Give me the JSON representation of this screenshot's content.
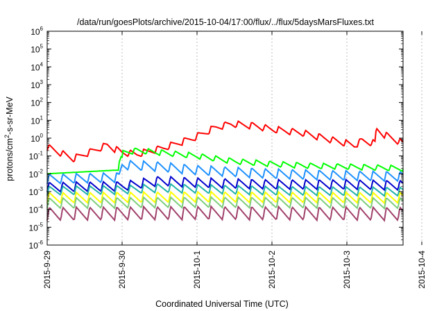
{
  "chart_data": {
    "type": "line",
    "title": "/data/run/goesPlots/archive/2015-10-04/17:00/flux/../flux/5daysMarsFluxes.txt",
    "xlabel": "Coordinated Universal Time (UTC)",
    "ylabel": "protons/cm²-s-sr-MeV",
    "ylabel_parts": {
      "pre": "protons/cm",
      "sup": "2",
      "post": "-s-sr-MeV"
    },
    "y_scale": "log",
    "ylim_exp": [
      -6,
      6
    ],
    "y_tick_base": "10",
    "y_tick_exponents": [
      "-6",
      "-5",
      "-4",
      "-3",
      "-2",
      "-1",
      "0",
      "1",
      "2",
      "3",
      "4",
      "5",
      "6"
    ],
    "x_range_days": [
      "2015-9-29",
      "2015-10-4 ~18:00"
    ],
    "x_ticks": [
      "2015-9-29",
      "2015-9-30",
      "2015-10-1",
      "2015-10-2",
      "2015-10-3",
      "2015-10-4"
    ],
    "grid": true,
    "legend": "none",
    "sampling_hours": 2,
    "series": [
      {
        "color": "#ff0000",
        "anchors": [
          [
            0,
            -0.5
          ],
          [
            0.35,
            -1.15
          ],
          [
            0.5,
            -0.9
          ],
          [
            0.8,
            -0.4
          ],
          [
            1.0,
            -0.8
          ],
          [
            1.2,
            -0.9
          ],
          [
            1.55,
            -0.55
          ],
          [
            1.95,
            0.0
          ],
          [
            2.25,
            0.6
          ],
          [
            2.45,
            0.8
          ],
          [
            2.75,
            0.7
          ],
          [
            3.0,
            0.5
          ],
          [
            3.4,
            0.3
          ],
          [
            3.8,
            -0.1
          ],
          [
            4.1,
            -0.4
          ],
          [
            4.2,
            -0.15
          ],
          [
            4.38,
            -0.3
          ],
          [
            4.39,
            0.5
          ],
          [
            4.5,
            0.2
          ],
          [
            4.75,
            -0.3
          ]
        ],
        "saw_amp": 0.38
      },
      {
        "color": "#00ff00",
        "anchors": [
          [
            0,
            -2.0
          ],
          [
            0.9,
            -1.8
          ],
          [
            0.95,
            -1.8
          ],
          [
            0.96,
            -1.2
          ],
          [
            1.0,
            -1.2
          ],
          [
            1.01,
            -0.8
          ],
          [
            1.2,
            -0.7
          ],
          [
            1.5,
            -0.8
          ],
          [
            2.0,
            -1.0
          ],
          [
            2.5,
            -1.3
          ],
          [
            3.0,
            -1.45
          ],
          [
            3.5,
            -1.55
          ],
          [
            4.0,
            -1.6
          ],
          [
            4.75,
            -1.7
          ]
        ],
        "saw_amp": 0.32,
        "saw_start": 0.96
      },
      {
        "color": "#1e90ff",
        "anchors": [
          [
            0,
            -2.3
          ],
          [
            0.96,
            -2.2
          ],
          [
            1.0,
            -1.5
          ],
          [
            1.5,
            -1.6
          ],
          [
            2.0,
            -1.8
          ],
          [
            3.0,
            -2.0
          ],
          [
            4.0,
            -2.1
          ],
          [
            4.75,
            -2.15
          ]
        ],
        "saw_amp": 0.55
      },
      {
        "color": "#0000cd",
        "anchors": [
          [
            0,
            -2.75
          ],
          [
            1.0,
            -2.7
          ],
          [
            1.5,
            -2.4
          ],
          [
            2.0,
            -2.5
          ],
          [
            3.0,
            -2.6
          ],
          [
            4.0,
            -2.6
          ],
          [
            4.75,
            -2.65
          ]
        ],
        "saw_amp": 0.55
      },
      {
        "color": "#20b2aa",
        "anchors": [
          [
            0,
            -2.95
          ],
          [
            1.0,
            -2.9
          ],
          [
            1.5,
            -2.8
          ],
          [
            2.0,
            -2.85
          ],
          [
            3.0,
            -2.95
          ],
          [
            4.75,
            -3.0
          ]
        ],
        "saw_amp": 0.5
      },
      {
        "color": "#ffff00",
        "anchors": [
          [
            0,
            -3.35
          ],
          [
            2.0,
            -3.3
          ],
          [
            4.75,
            -3.35
          ]
        ],
        "saw_amp": 0.6
      },
      {
        "color": "#7ccd7c",
        "anchors": [
          [
            0,
            -3.65
          ],
          [
            2.0,
            -3.6
          ],
          [
            4.75,
            -3.65
          ]
        ],
        "saw_amp": 0.6
      },
      {
        "color": "#a0406a",
        "anchors": [
          [
            0,
            -4.25
          ],
          [
            2.0,
            -4.2
          ],
          [
            4.75,
            -4.25
          ]
        ],
        "saw_amp": 0.75
      }
    ]
  }
}
